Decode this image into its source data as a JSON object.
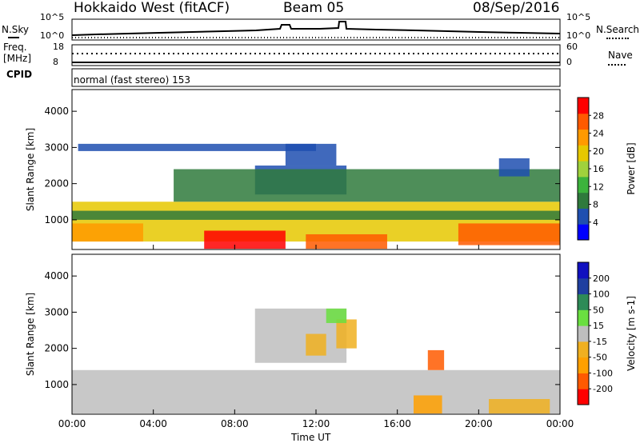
{
  "header": {
    "station": "Hokkaido West (fitACF)",
    "beam": "Beam 05",
    "date": "08/Sep/2016"
  },
  "noise_panel": {
    "left_label": "N.Sky",
    "right_label": "N.Search",
    "left_ticks": [
      "10^5",
      "10^0"
    ],
    "right_ticks": [
      "10^5",
      "10^0"
    ]
  },
  "freq_panel": {
    "left_label_1": "Freq.",
    "left_label_2": "[MHz]",
    "right_label": "Nave",
    "left_ticks": [
      "18",
      "8"
    ],
    "right_ticks": [
      "60",
      "0"
    ]
  },
  "cpid_panel": {
    "label": "CPID",
    "text": "normal (fast stereo) 153"
  },
  "colors": {
    "power": [
      "#0000ff",
      "#1f4fb0",
      "#2f7a3c",
      "#3cb33c",
      "#a0d23c",
      "#e6c800",
      "#ff9a00",
      "#ff5a00",
      "#ff0000"
    ],
    "velocity": [
      "#ff0000",
      "#ff5a00",
      "#ffa000",
      "#f0b020",
      "#bebebe",
      "#6adf40",
      "#2e8b57",
      "#1f3fa0",
      "#1010c0"
    ],
    "ground_scatter": "#bebebe"
  },
  "chart_data": [
    {
      "type": "heatmap",
      "title": "Power",
      "xlabel": "Time UT",
      "ylabel": "Slant Range [km]",
      "x_ticks": [
        "00:00",
        "04:00",
        "08:00",
        "12:00",
        "16:00",
        "20:00",
        "00:00"
      ],
      "x_range_hours": [
        0,
        24
      ],
      "y_ticks": [
        1000,
        2000,
        3000,
        4000
      ],
      "ylim": [
        180,
        4600
      ],
      "colorbar": {
        "label": "Power [dB]",
        "ticks": [
          4,
          8,
          12,
          16,
          20,
          24,
          28
        ],
        "range": [
          0,
          32
        ]
      },
      "scatter_bands": [
        {
          "t0": 0,
          "t1": 24,
          "r0": 400,
          "r1": 1500,
          "level": 19
        },
        {
          "t0": 0,
          "t1": 24,
          "r0": 1000,
          "r1": 1250,
          "level": 9
        },
        {
          "t0": 0,
          "t1": 3.5,
          "r0": 400,
          "r1": 900,
          "level": 24
        },
        {
          "t0": 6.5,
          "t1": 10.5,
          "r0": 200,
          "r1": 700,
          "level": 29
        },
        {
          "t0": 11.5,
          "t1": 15.5,
          "r0": 200,
          "r1": 600,
          "level": 28
        },
        {
          "t0": 19,
          "t1": 24,
          "r0": 300,
          "r1": 900,
          "level": 27
        },
        {
          "t0": 9,
          "t1": 13.5,
          "r0": 1700,
          "r1": 2500,
          "level": 6
        },
        {
          "t0": 10.5,
          "t1": 13,
          "r0": 2500,
          "r1": 3100,
          "level": 5
        },
        {
          "t0": 0.3,
          "t1": 12,
          "r0": 2900,
          "r1": 3100,
          "level": 6
        },
        {
          "t0": 5,
          "t1": 24,
          "r0": 1500,
          "r1": 2400,
          "level": 10
        },
        {
          "t0": 21,
          "t1": 22.5,
          "r0": 2200,
          "r1": 2700,
          "level": 6
        }
      ]
    },
    {
      "type": "heatmap",
      "title": "Velocity",
      "xlabel": "Time UT",
      "ylabel": "Slant Range [km]",
      "x_ticks": [
        "00:00",
        "04:00",
        "08:00",
        "12:00",
        "16:00",
        "20:00",
        "00:00"
      ],
      "x_range_hours": [
        0,
        24
      ],
      "y_ticks": [
        1000,
        2000,
        3000,
        4000
      ],
      "ylim": [
        180,
        4600
      ],
      "colorbar": {
        "label": "Velocity [m s-1]",
        "ticks": [
          200,
          100,
          50,
          15,
          -15,
          -50,
          -100,
          -200
        ],
        "range": [
          -250,
          250
        ]
      },
      "scatter_bands": [
        {
          "t0": 0,
          "t1": 24,
          "r0": 200,
          "r1": 1400,
          "level": 0
        },
        {
          "t0": 9,
          "t1": 13.5,
          "r0": 1600,
          "r1": 3100,
          "level": 0
        },
        {
          "t0": 11.5,
          "t1": 12.5,
          "r0": 1800,
          "r1": 2400,
          "level": -60
        },
        {
          "t0": 13,
          "t1": 14,
          "r0": 2000,
          "r1": 2800,
          "level": -60
        },
        {
          "t0": 17.5,
          "t1": 18.3,
          "r0": 1400,
          "r1": 1950,
          "level": -170
        },
        {
          "t0": 16.8,
          "t1": 18.2,
          "r0": 200,
          "r1": 700,
          "level": -90
        },
        {
          "t0": 20.5,
          "t1": 23.5,
          "r0": 200,
          "r1": 600,
          "level": -60
        },
        {
          "t0": 12.5,
          "t1": 13.5,
          "r0": 2700,
          "r1": 3100,
          "level": 40
        }
      ]
    }
  ],
  "axis_title": "Time UT"
}
